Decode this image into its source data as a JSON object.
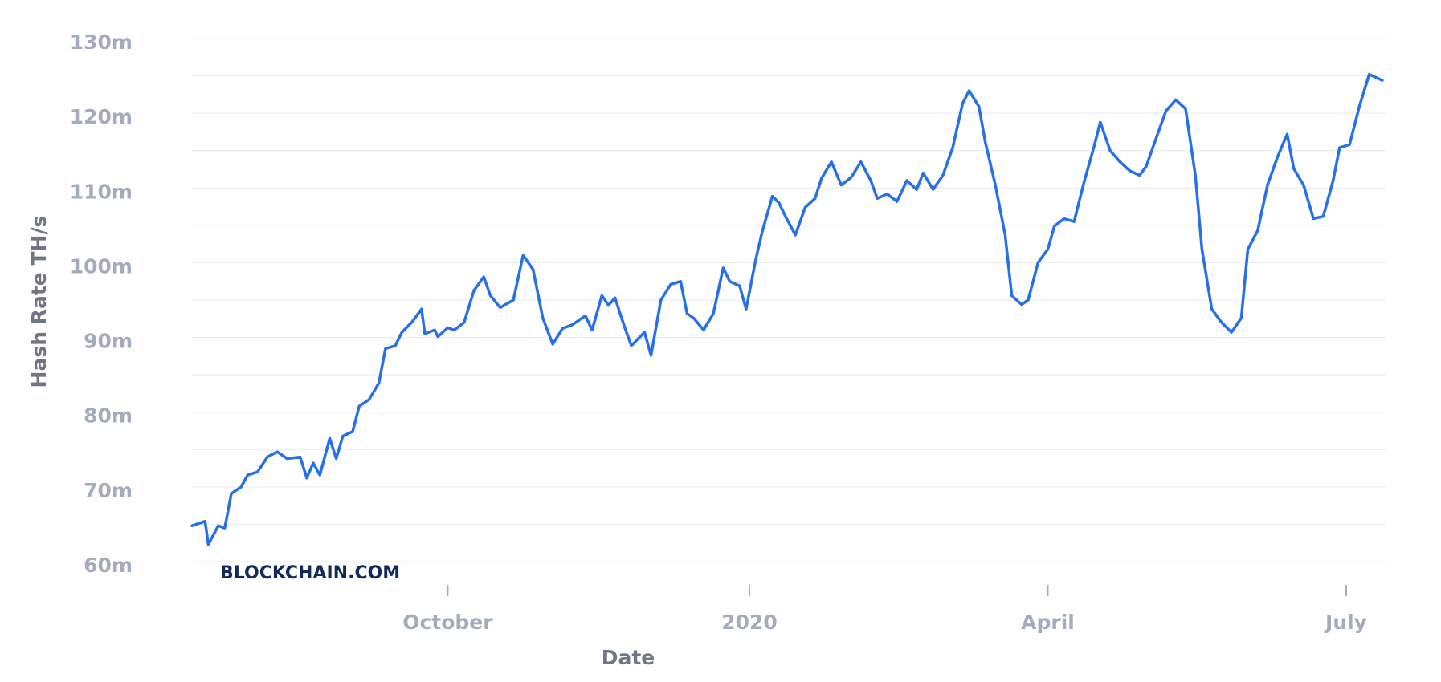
{
  "chart_data": {
    "type": "line",
    "y_label": "Hash Rate TH/s",
    "x_label": "Date",
    "watermark": "BLOCKCHAIN.COM",
    "x": [
      -78,
      -74,
      -73,
      -70,
      -68,
      -66,
      -63,
      -61,
      -58,
      -55,
      -52,
      -49,
      -45,
      -43,
      -41,
      -39,
      -36,
      -34,
      -32,
      -29,
      -27,
      -24,
      -21,
      -19,
      -16,
      -14,
      -11,
      -8,
      -7,
      -4,
      -3,
      0,
      2,
      5,
      8,
      11,
      13,
      16,
      20,
      23,
      26,
      29,
      32,
      35,
      38,
      42,
      44,
      47,
      49,
      51,
      54,
      56,
      60,
      62,
      65,
      68,
      71,
      73,
      75,
      78,
      81,
      84,
      86,
      89,
      91,
      94,
      96,
      99,
      101,
      103,
      106,
      109,
      112,
      114,
      117,
      120,
      123,
      126,
      129,
      131,
      134,
      137,
      140,
      143,
      145,
      148,
      151,
      154,
      157,
      159,
      162,
      164,
      167,
      170,
      172,
      175,
      177,
      180,
      183,
      185,
      188,
      191,
      194,
      197,
      199,
      202,
      205,
      208,
      211,
      213,
      216,
      219,
      222,
      225,
      228,
      230,
      233,
      236,
      239,
      242,
      244,
      247,
      250,
      253,
      256,
      258,
      261,
      264,
      267,
      270,
      272,
      275,
      278,
      281,
      284,
      285
    ],
    "series": [
      {
        "name": "Hash Rate",
        "color": "#2870e6",
        "values": [
          64.8,
          65.4,
          62.3,
          64.8,
          64.5,
          69.1,
          70,
          71.6,
          72,
          74,
          74.7,
          73.8,
          74,
          71.2,
          73.2,
          71.6,
          76.5,
          73.8,
          76.8,
          77.4,
          80.8,
          81.7,
          83.9,
          88.5,
          88.9,
          90.7,
          92,
          93.8,
          90.5,
          91,
          90.1,
          91.3,
          91,
          92,
          96.3,
          98.1,
          95.6,
          94,
          95,
          101,
          99.1,
          92.6,
          89.1,
          91.2,
          91.7,
          92.9,
          91,
          95.6,
          94.3,
          95.3,
          91.3,
          88.9,
          90.7,
          87.6,
          95,
          97.1,
          97.5,
          93.2,
          92.6,
          91,
          93.2,
          99.3,
          97.5,
          96.9,
          93.8,
          100.6,
          104.3,
          108.9,
          108,
          106.2,
          103.7,
          107.4,
          108.6,
          111.3,
          113.5,
          110.4,
          111.4,
          113.5,
          111,
          108.6,
          109.2,
          108.2,
          111,
          109.8,
          112,
          109.8,
          111.7,
          115.4,
          121.3,
          123,
          120.9,
          116,
          110.4,
          103.7,
          95.6,
          94.4,
          95,
          100,
          101.8,
          104.9,
          105.9,
          105.5,
          110.7,
          115.4,
          118.8,
          115,
          113.5,
          112.3,
          111.7,
          112.9,
          116.6,
          120.3,
          121.8,
          120.6,
          111.7,
          101.8,
          93.8,
          92,
          90.7,
          92.6,
          101.8,
          104.3,
          110.4,
          114.1,
          117.2,
          112.6,
          110.4,
          105.9,
          106.2,
          111,
          115.4,
          115.8,
          120.9,
          125.2,
          124.6,
          124.4
        ]
      }
    ],
    "xlim": [
      -78,
      286
    ],
    "xticks": [
      {
        "value": 0,
        "label": "October"
      },
      {
        "value": 92,
        "label": "2020"
      },
      {
        "value": 183,
        "label": "April"
      },
      {
        "value": 274,
        "label": "July"
      }
    ],
    "ylim": [
      60,
      130
    ],
    "yticks": [
      {
        "value": 60,
        "label": "60m"
      },
      {
        "value": 70,
        "label": "70m"
      },
      {
        "value": 80,
        "label": "80m"
      },
      {
        "value": 90,
        "label": "90m"
      },
      {
        "value": 100,
        "label": "100m"
      },
      {
        "value": 110,
        "label": "110m"
      },
      {
        "value": 120,
        "label": "120m"
      },
      {
        "value": 130,
        "label": "130m"
      }
    ],
    "minor_yticks": [
      65,
      75,
      85,
      95,
      105,
      115,
      125
    ],
    "grid": true
  }
}
